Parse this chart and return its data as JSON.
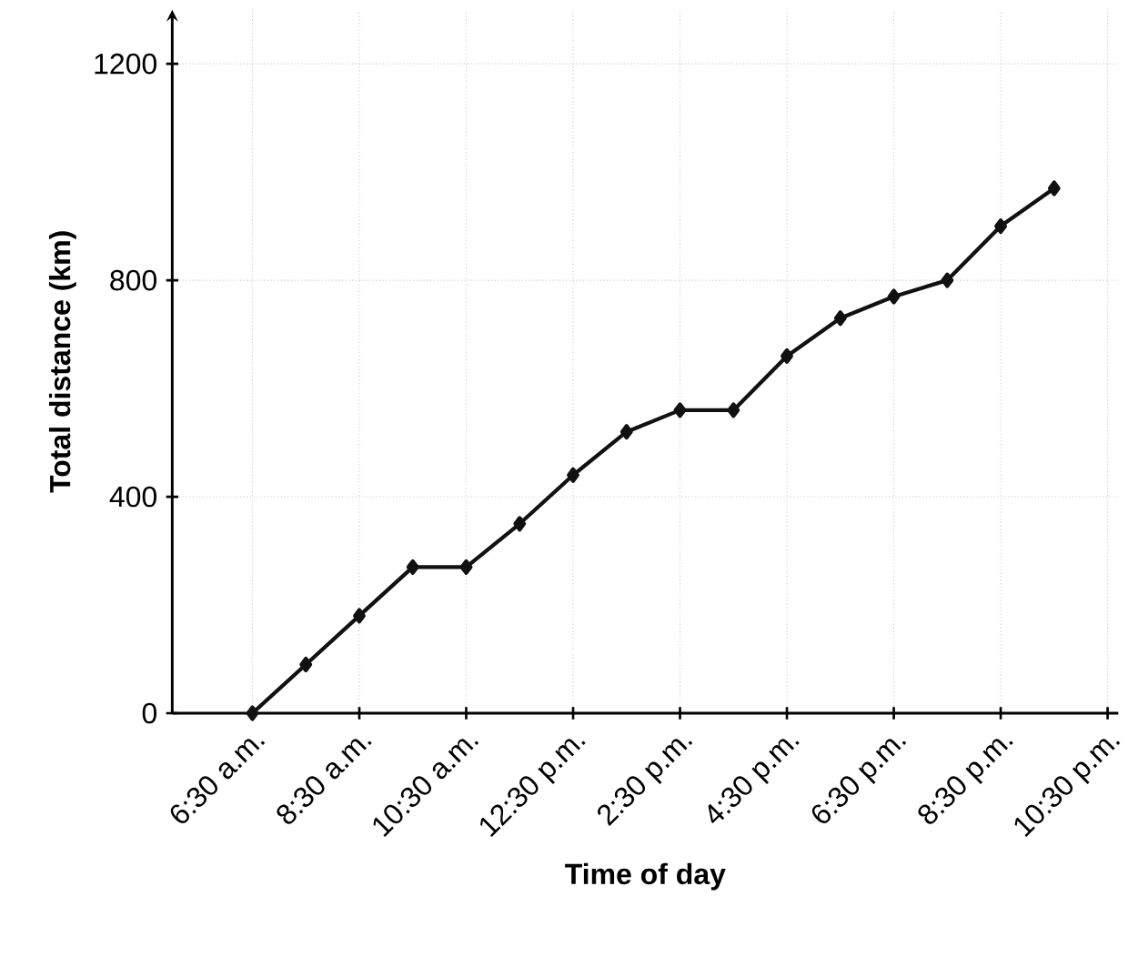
{
  "chart_data": {
    "type": "line",
    "xlabel": "Time of day",
    "ylabel": "Total distance (km)",
    "x": [
      6.5,
      7.5,
      8.5,
      9.5,
      10.5,
      11.5,
      12.5,
      13.5,
      14.5,
      15.5,
      16.5,
      17.5,
      18.5,
      19.5,
      20.5,
      21.5
    ],
    "series": [
      {
        "color": "#111111",
        "values": [
          0,
          90,
          180,
          270,
          270,
          350,
          440,
          520,
          560,
          560,
          660,
          730,
          770,
          800,
          900,
          970
        ]
      }
    ],
    "xlim": [
      5,
      22.7
    ],
    "ylim": [
      0,
      1300
    ],
    "xticks": [
      {
        "value": 6.5,
        "label": "6:30 a.m."
      },
      {
        "value": 8.5,
        "label": "8:30 a.m."
      },
      {
        "value": 10.5,
        "label": "10:30 a.m."
      },
      {
        "value": 12.5,
        "label": "12:30 p.m."
      },
      {
        "value": 14.5,
        "label": "2:30 p.m."
      },
      {
        "value": 16.5,
        "label": "4:30 p.m."
      },
      {
        "value": 18.5,
        "label": "6:30 p.m."
      },
      {
        "value": 20.5,
        "label": "8:30 p.m."
      },
      {
        "value": 22.5,
        "label": "10:30 p.m."
      }
    ],
    "yticks": [
      0,
      400,
      800,
      1200
    ],
    "grid": true,
    "marker": "diamond",
    "line_style": "solid"
  }
}
